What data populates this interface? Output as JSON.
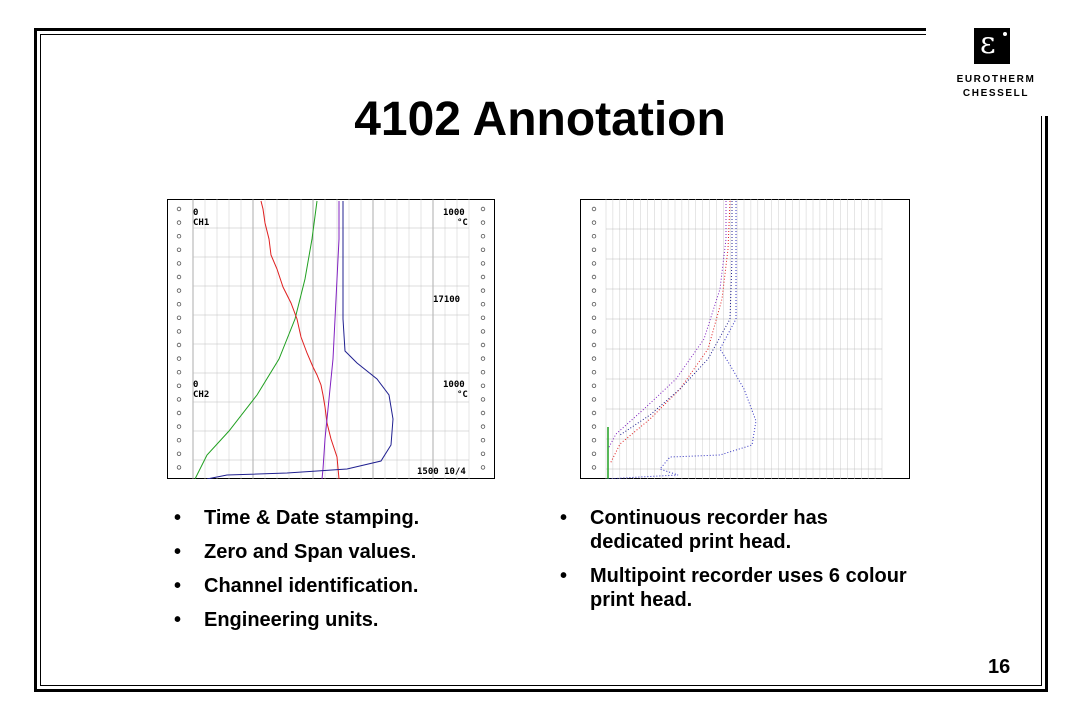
{
  "slide": {
    "title": "4102 Annotation",
    "page_number": "16"
  },
  "logo": {
    "line1": "EUROTHERM",
    "line2": "CHESSELL",
    "mark": "ε"
  },
  "left_bullets": [
    "Time & Date stamping.",
    "Zero and Span values.",
    "Channel identification.",
    "Engineering units."
  ],
  "right_bullets": [
    "Continuous recorder has dedicated print head.",
    "Multipoint recorder uses 6 colour print head."
  ],
  "chart_data": [
    {
      "type": "line",
      "name": "continuous-recorder-chart",
      "annotations": [
        "0",
        "CH1",
        "1000",
        "°C",
        "17100",
        "0",
        "CH2",
        "1000",
        "°C",
        "1500 10/4"
      ],
      "grid": true,
      "series_colors": [
        "#20a020",
        "#e02020",
        "#8020c0",
        "#202090"
      ]
    },
    {
      "type": "line",
      "name": "multipoint-recorder-chart",
      "grid": true,
      "series_colors": [
        "#20a020",
        "#e02020",
        "#8020c0",
        "#202090"
      ]
    }
  ]
}
